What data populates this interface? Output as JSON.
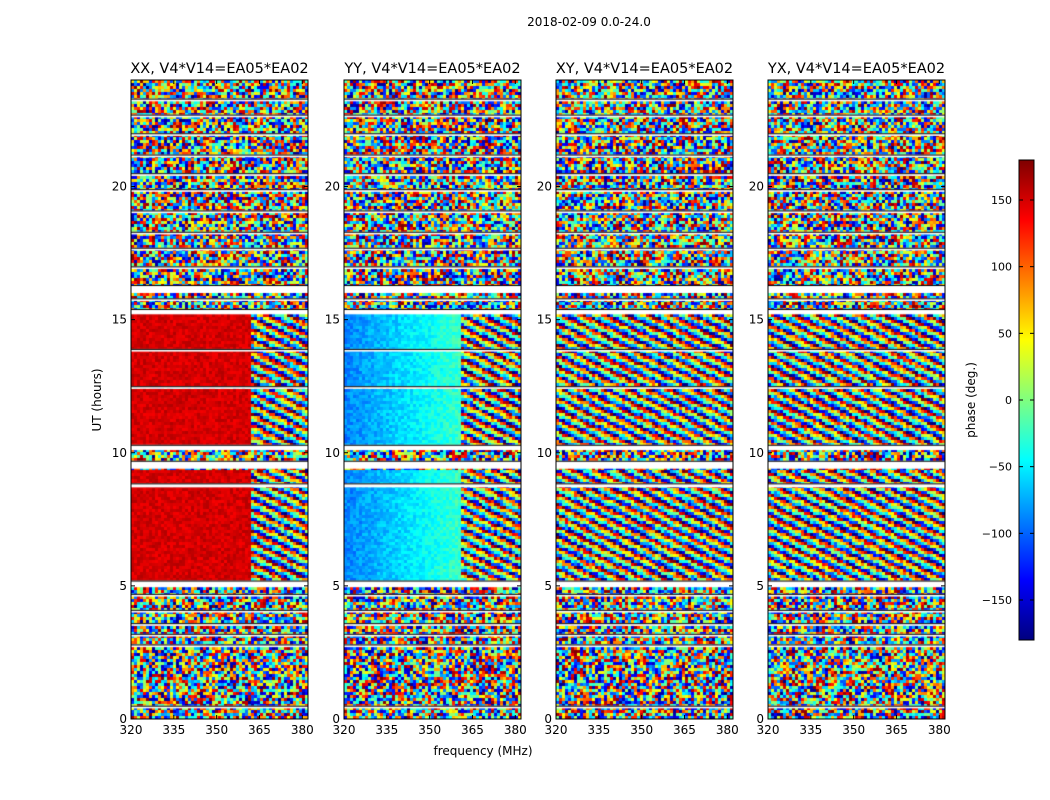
{
  "figure_title": "2018-02-09 0.0-24.0",
  "chart_data": {
    "type": "heatmap",
    "title": "2018-02-09 0.0-24.0",
    "xlabel": "frequency (MHz)",
    "ylabel": "UT (hours)",
    "xlim": [
      320,
      382
    ],
    "ylim": [
      0,
      24
    ],
    "xticks": [
      320,
      335,
      350,
      365,
      380
    ],
    "yticks": [
      0,
      5,
      10,
      15,
      20
    ],
    "panels": [
      {
        "title": "XX, V4*V14=EA05*EA02",
        "pol": "XX",
        "coherent_phase": 150,
        "coherent_until_mhz": 362
      },
      {
        "title": "YY, V4*V14=EA05*EA02",
        "pol": "YY",
        "coherent_phase": -60,
        "coherent_until_mhz": 361
      },
      {
        "title": "XY, V4*V14=EA05*EA02",
        "pol": "XY",
        "coherent_phase": null,
        "coherent_until_mhz": null
      },
      {
        "title": "YX, V4*V14=EA05*EA02",
        "pol": "YX",
        "coherent_phase": null,
        "coherent_until_mhz": null
      }
    ],
    "coherent_time_ranges": [
      [
        5.2,
        9.4
      ],
      [
        10.3,
        12.4
      ],
      [
        12.5,
        15.2
      ]
    ],
    "flagged_time_gaps": [
      [
        0.4,
        0.5
      ],
      [
        2.7,
        2.8
      ],
      [
        3.1,
        3.2
      ],
      [
        3.5,
        3.6
      ],
      [
        4.0,
        4.1
      ],
      [
        4.6,
        4.7
      ],
      [
        4.95,
        5.2
      ],
      [
        8.7,
        8.85
      ],
      [
        9.4,
        9.7
      ],
      [
        10.1,
        10.3
      ],
      [
        12.4,
        12.5
      ],
      [
        13.8,
        13.9
      ],
      [
        15.2,
        15.4
      ],
      [
        15.7,
        15.8
      ],
      [
        16.0,
        16.3
      ],
      [
        16.9,
        17.0
      ],
      [
        17.6,
        17.7
      ],
      [
        18.2,
        18.3
      ],
      [
        19.0,
        19.1
      ],
      [
        19.8,
        19.9
      ],
      [
        20.4,
        20.5
      ],
      [
        21.1,
        21.2
      ],
      [
        21.9,
        22.0
      ],
      [
        22.6,
        22.7
      ],
      [
        23.2,
        23.3
      ]
    ],
    "colorbar": {
      "label": "phase (deg.)",
      "range": [
        -180,
        180
      ],
      "ticks": [
        -150,
        -100,
        -50,
        0,
        50,
        100,
        150
      ],
      "colormap": "jet"
    }
  }
}
